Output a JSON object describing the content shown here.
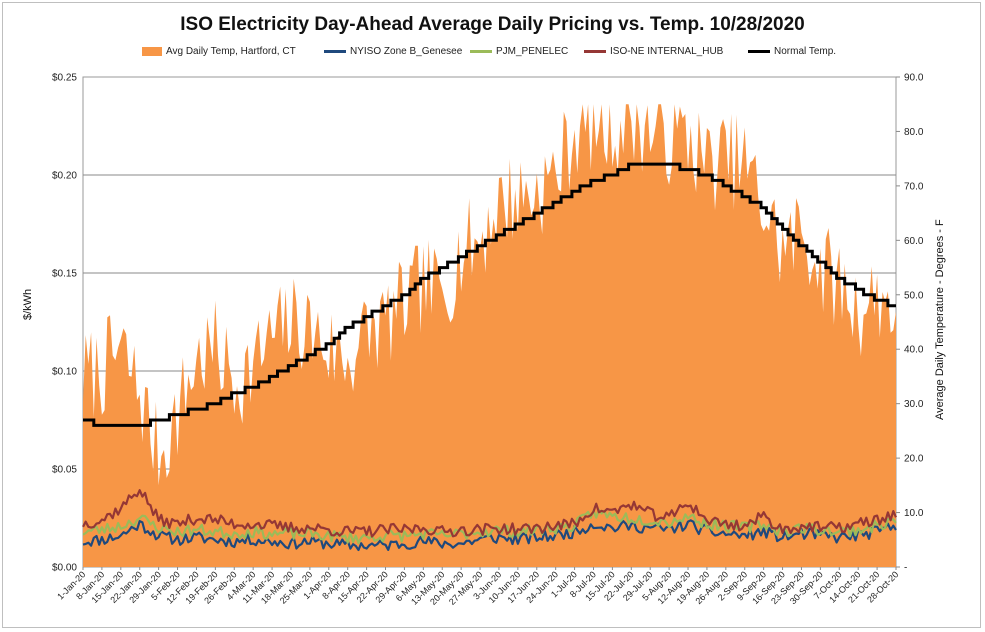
{
  "chart_data": {
    "type": "area+line",
    "title": "ISO Electricity Day-Ahead Average Daily Pricing vs. Temp. 10/28/2020",
    "ylabel": "$/kWh",
    "y2label": "Average Daily Temperature - Degrees - F",
    "ylim": [
      0,
      0.25
    ],
    "y2lim": [
      0,
      90
    ],
    "y_ticks": [
      "$0.00",
      "$0.05",
      "$0.10",
      "$0.15",
      "$0.20",
      "$0.25"
    ],
    "y2_ticks": [
      "-",
      "10.0",
      "20.0",
      "30.0",
      "40.0",
      "50.0",
      "60.0",
      "70.0",
      "80.0",
      "90.0"
    ],
    "x_tick_labels": [
      "1-Jan-20",
      "8-Jan-20",
      "15-Jan-20",
      "22-Jan-20",
      "29-Jan-20",
      "5-Feb-20",
      "12-Feb-20",
      "19-Feb-20",
      "26-Feb-20",
      "4-Mar-20",
      "11-Mar-20",
      "18-Mar-20",
      "25-Mar-20",
      "1-Apr-20",
      "8-Apr-20",
      "15-Apr-20",
      "22-Apr-20",
      "29-Apr-20",
      "6-May-20",
      "13-May-20",
      "20-May-20",
      "27-May-20",
      "3-Jun-20",
      "10-Jun-20",
      "17-Jun-20",
      "24-Jun-20",
      "1-Jul-20",
      "8-Jul-20",
      "15-Jul-20",
      "22-Jul-20",
      "29-Jul-20",
      "5-Aug-20",
      "12-Aug-20",
      "19-Aug-20",
      "26-Aug-20",
      "2-Sep-20",
      "9-Sep-20",
      "16-Sep-20",
      "23-Sep-20",
      "30-Sep-20",
      "7-Oct-20",
      "14-Oct-20",
      "21-Oct-20",
      "28-Oct-20"
    ],
    "legend_position": "top",
    "grid": true,
    "series": [
      {
        "name": "Avg Daily Temp, Hartford, CT",
        "type": "area",
        "axis": "right",
        "color": "#F79646",
        "weekly_values": [
          35,
          36,
          40,
          32,
          20,
          28,
          38,
          40,
          34,
          37,
          42,
          45,
          44,
          40,
          38,
          43,
          45,
          48,
          52,
          50,
          58,
          60,
          67,
          68,
          69,
          72,
          80,
          82,
          80,
          83,
          80,
          79,
          79,
          74,
          75,
          74,
          66,
          58,
          62,
          55,
          52,
          47,
          50,
          48
        ]
      },
      {
        "name": "NYISO Zone B_Genesee",
        "type": "line",
        "axis": "left",
        "color": "#1F497D",
        "weekly_values": [
          0.013,
          0.014,
          0.016,
          0.022,
          0.016,
          0.014,
          0.015,
          0.014,
          0.013,
          0.014,
          0.013,
          0.012,
          0.013,
          0.012,
          0.011,
          0.011,
          0.011,
          0.012,
          0.013,
          0.012,
          0.012,
          0.014,
          0.015,
          0.014,
          0.015,
          0.016,
          0.018,
          0.022,
          0.02,
          0.021,
          0.02,
          0.019,
          0.022,
          0.018,
          0.017,
          0.016,
          0.018,
          0.015,
          0.017,
          0.016,
          0.015,
          0.016,
          0.018,
          0.021
        ]
      },
      {
        "name": "PJM_PENELEC",
        "type": "line",
        "axis": "left",
        "color": "#9BBB59",
        "weekly_values": [
          0.018,
          0.019,
          0.021,
          0.025,
          0.02,
          0.018,
          0.019,
          0.018,
          0.017,
          0.018,
          0.017,
          0.017,
          0.017,
          0.016,
          0.015,
          0.015,
          0.016,
          0.016,
          0.017,
          0.016,
          0.017,
          0.018,
          0.019,
          0.018,
          0.019,
          0.02,
          0.021,
          0.028,
          0.026,
          0.025,
          0.024,
          0.023,
          0.026,
          0.022,
          0.021,
          0.02,
          0.022,
          0.018,
          0.02,
          0.019,
          0.018,
          0.019,
          0.021,
          0.024
        ]
      },
      {
        "name": "ISO-NE INTERNAL_HUB",
        "type": "line",
        "axis": "left",
        "color": "#953735",
        "weekly_values": [
          0.022,
          0.024,
          0.03,
          0.04,
          0.024,
          0.022,
          0.025,
          0.024,
          0.022,
          0.022,
          0.021,
          0.02,
          0.02,
          0.019,
          0.018,
          0.018,
          0.019,
          0.019,
          0.02,
          0.018,
          0.019,
          0.019,
          0.02,
          0.019,
          0.02,
          0.021,
          0.022,
          0.03,
          0.028,
          0.032,
          0.027,
          0.025,
          0.033,
          0.024,
          0.022,
          0.021,
          0.026,
          0.019,
          0.021,
          0.02,
          0.02,
          0.022,
          0.024,
          0.027
        ]
      },
      {
        "name": "Normal Temp.",
        "type": "line",
        "axis": "right",
        "color": "#000000",
        "weekly_values": [
          27,
          26,
          26,
          26,
          27,
          28,
          29,
          30,
          32,
          33,
          35,
          37,
          39,
          41,
          44,
          46,
          48,
          50,
          53,
          55,
          57,
          59,
          61,
          63,
          65,
          67,
          69,
          71,
          72,
          74,
          74,
          74,
          73,
          72,
          70,
          68,
          66,
          62,
          59,
          56,
          53,
          51,
          49,
          48
        ]
      }
    ]
  }
}
